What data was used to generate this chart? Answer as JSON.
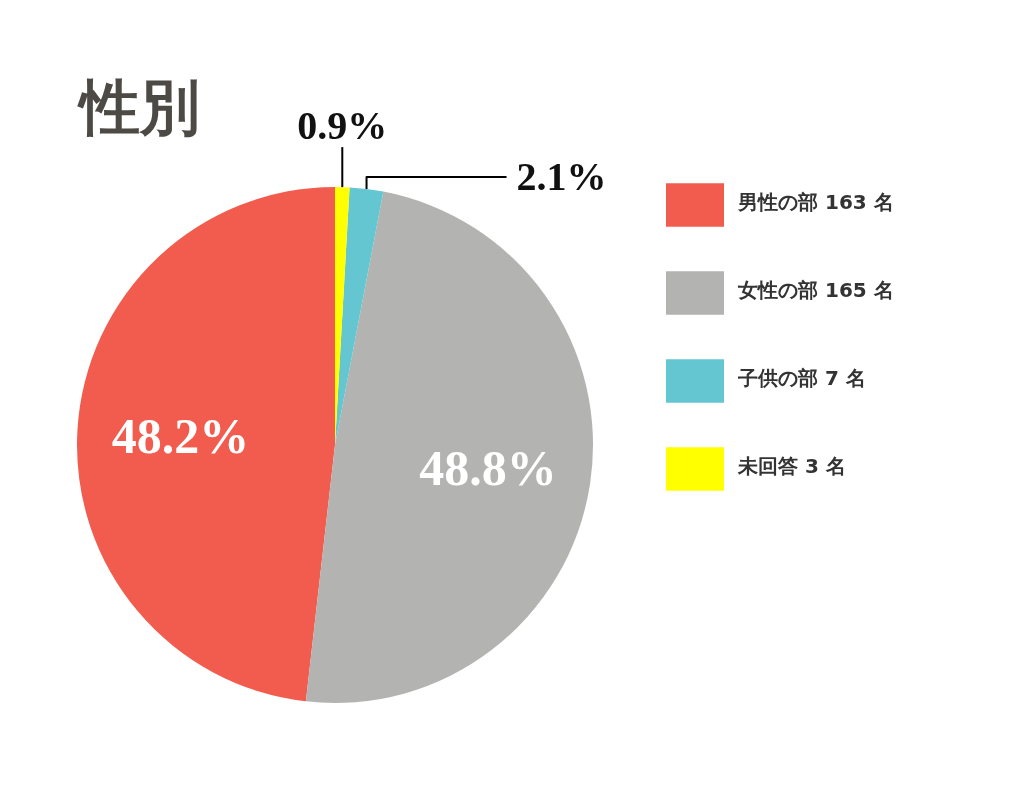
{
  "chart_data": {
    "type": "pie",
    "title": "性別",
    "categories": [
      "男性の部 163 名",
      "女性の部 165 名",
      "子供の部 7 名",
      "未回答 3 名"
    ],
    "values": [
      48.2,
      48.8,
      2.1,
      0.9
    ],
    "colors": [
      "#f25c4e",
      "#b3b3b1",
      "#63c6d1",
      "#ffff00"
    ],
    "value_labels": [
      "48.2%",
      "48.8%",
      "2.1%",
      "0.9%"
    ],
    "legend": "right"
  }
}
